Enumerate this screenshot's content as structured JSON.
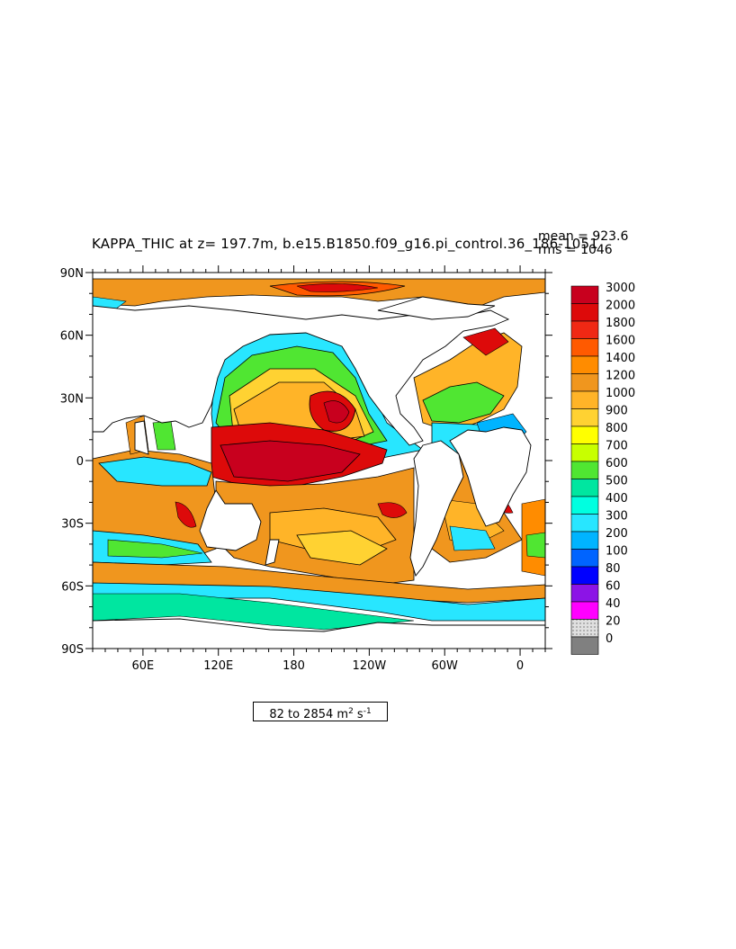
{
  "title": "KAPPA_THIC at z= 197.7m, b.e15.B1850.f09_g16.pi_control.36_186-1051",
  "stats": {
    "mean": "mean = 923.6",
    "rms": "rms = 1046"
  },
  "units": {
    "prefix": "82 to 2854 m",
    "exp1": "2",
    "mid": " s",
    "exp2": "-1"
  },
  "lat_ticks": [
    "90N",
    "60N",
    "30N",
    "0",
    "30S",
    "60S",
    "90S"
  ],
  "lon_ticks": [
    "60E",
    "120E",
    "180",
    "120W",
    "60W",
    "0"
  ],
  "colorbar": {
    "labels": [
      "3000",
      "2000",
      "1800",
      "1600",
      "1400",
      "1200",
      "1000",
      "900",
      "800",
      "700",
      "600",
      "500",
      "400",
      "300",
      "200",
      "100",
      "80",
      "60",
      "40",
      "20",
      "0"
    ],
    "colors": [
      "#c8001e",
      "#dd0a0a",
      "#f02814",
      "#ff5a00",
      "#ff8c00",
      "#f0961e",
      "#ffb428",
      "#ffd232",
      "#ffff00",
      "#c8ff00",
      "#50e632",
      "#00e6a0",
      "#00ffe0",
      "#28e6ff",
      "#00b4ff",
      "#0064ff",
      "#0000ff",
      "#8c14e6",
      "#ff00ff",
      "#d2d2d2",
      "#808080"
    ]
  }
}
